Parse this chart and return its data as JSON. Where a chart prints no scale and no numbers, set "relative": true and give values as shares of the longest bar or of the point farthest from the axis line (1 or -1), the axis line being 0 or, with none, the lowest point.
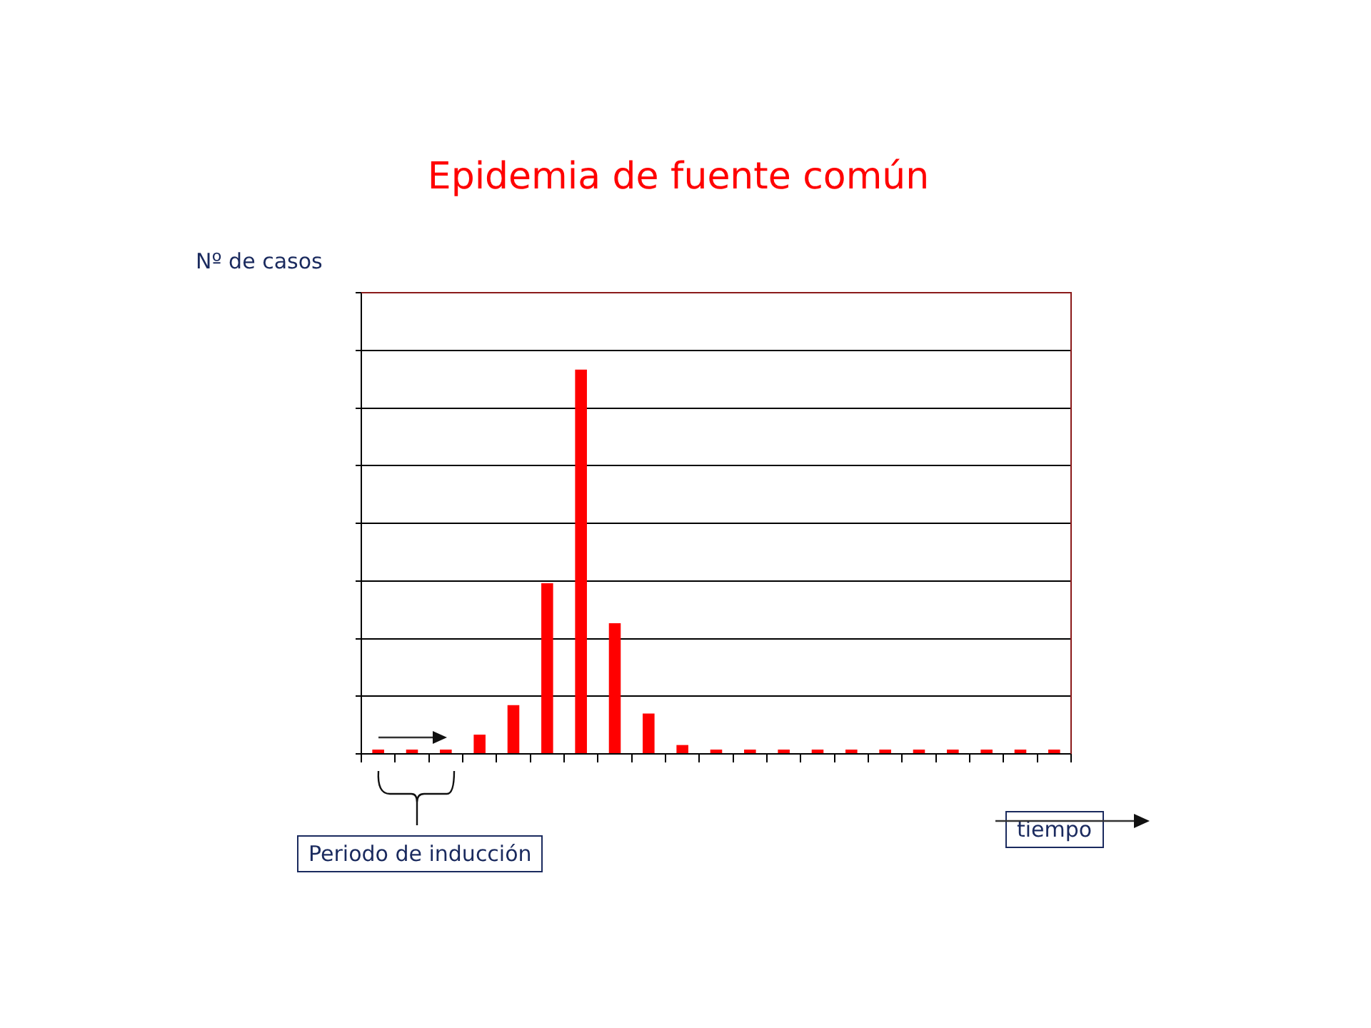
{
  "chart_data": {
    "type": "bar",
    "title": "Epidemia de fuente común",
    "ylabel": "Nº de casos",
    "relative": true,
    "grid": "y",
    "legend": false,
    "categories": [
      null,
      null,
      null,
      null,
      null,
      null,
      null,
      null,
      null,
      null,
      null,
      null,
      null,
      null,
      null,
      null,
      null,
      null,
      null,
      null,
      null
    ],
    "values": [
      0,
      0,
      0,
      0.05,
      0.127,
      0.444,
      1,
      0.34,
      0.105,
      0.023,
      0,
      0,
      0,
      0,
      0,
      0,
      0,
      0,
      0,
      0,
      0
    ],
    "color": "#ff0000",
    "annotations": [
      "Periodo de inducción",
      "tiempo"
    ]
  }
}
